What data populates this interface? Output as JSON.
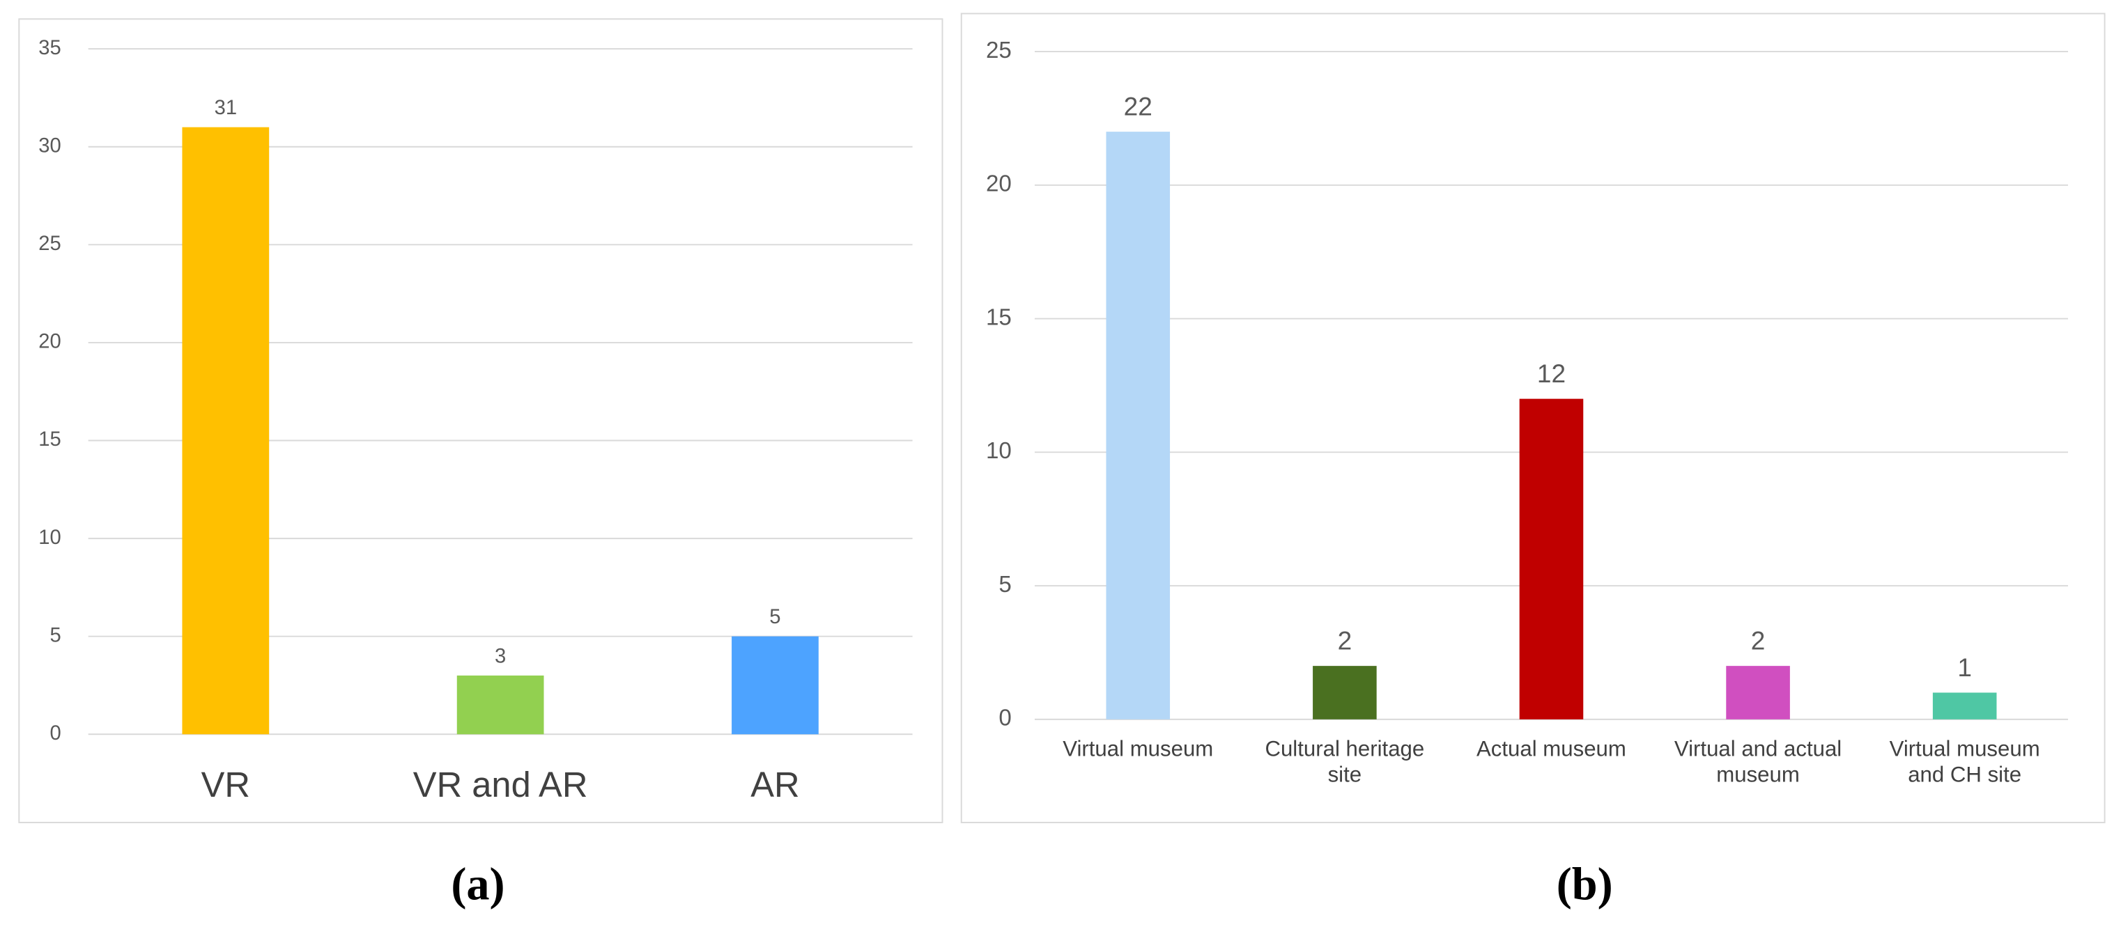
{
  "chart_data": [
    {
      "type": "bar",
      "caption": "(a)",
      "categories": [
        "VR",
        "VR and AR",
        "AR"
      ],
      "values": [
        31,
        3,
        5
      ],
      "colors": [
        "#ffc000",
        "#92d050",
        "#4da3ff"
      ],
      "ylim": [
        0,
        35
      ],
      "yticks": [
        0,
        5,
        10,
        15,
        20,
        25,
        30,
        35
      ],
      "grid": true
    },
    {
      "type": "bar",
      "caption": "(b)",
      "categories": [
        "Virtual museum",
        "Cultural heritage site",
        "Actual museum",
        "Virtual and actual museum",
        "Virtual museum and CH site"
      ],
      "values": [
        22,
        2,
        12,
        2,
        1
      ],
      "colors": [
        "#b4d7f7",
        "#4a7020",
        "#c00000",
        "#d04fc0",
        "#4fc7a4"
      ],
      "ylim": [
        0,
        25
      ],
      "yticks": [
        0,
        5,
        10,
        15,
        20,
        25
      ],
      "grid": true
    }
  ]
}
